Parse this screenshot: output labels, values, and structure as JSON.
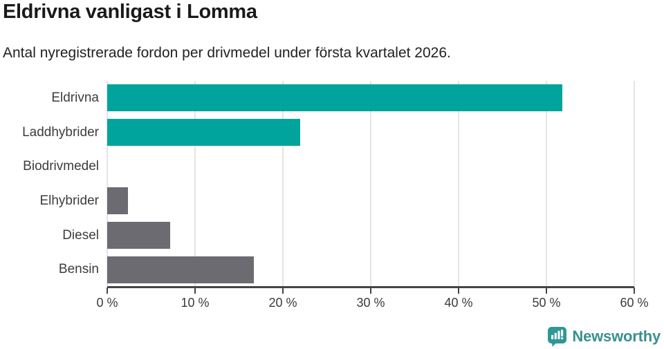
{
  "title": "Eldrivna vanligast i Lomma",
  "subtitle": "Antal nyregistrerade fordon per drivmedel under första kvartalet 2026.",
  "chart_data": {
    "type": "bar",
    "orientation": "horizontal",
    "title": "Eldrivna vanligast i Lomma",
    "subtitle": "Antal nyregistrerade fordon per drivmedel under första kvartalet 2026.",
    "categories": [
      "Eldrivna",
      "Laddhybrider",
      "Biodrivmedel",
      "Elhybrider",
      "Diesel",
      "Bensin"
    ],
    "values": [
      51.8,
      22.0,
      0,
      2.4,
      7.2,
      16.7
    ],
    "unit": "%",
    "bar_colors": [
      "#00a49c",
      "#00a49c",
      "#00a49c",
      "#6b6b71",
      "#6b6b71",
      "#6b6b71"
    ],
    "xlim": [
      0,
      60
    ],
    "x_ticks": [
      0,
      10,
      20,
      30,
      40,
      50,
      60
    ],
    "x_tick_labels": [
      "0 %",
      "10 %",
      "20 %",
      "30 %",
      "40 %",
      "50 %",
      "60 %"
    ],
    "xlabel": "",
    "ylabel": "",
    "grid": "vertical-only",
    "legend": "none"
  },
  "colors": {
    "teal_bar": "#00a49c",
    "gray_bar": "#6b6b71",
    "gridline": "#e4e4e4",
    "axis": "#454545",
    "logo_icon": "#2f9795",
    "logo_text": "#38908f"
  },
  "footer": {
    "brand": "Newsworthy"
  }
}
